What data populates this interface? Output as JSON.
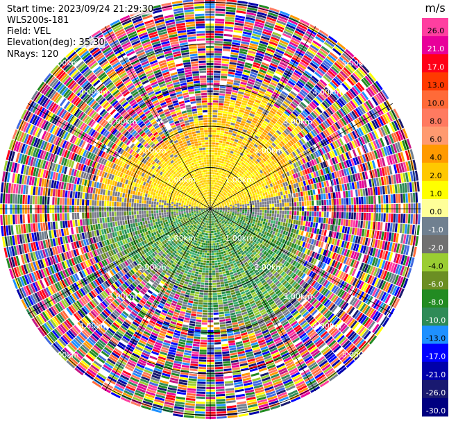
{
  "header": {
    "start_time": "Start time: 2023/09/24 21:29:30",
    "station": "WLS200s-181",
    "field": "Field: VEL",
    "elevation": "Elevation(deg): 35.30",
    "nrays": "NRays: 120"
  },
  "chart_data": {
    "type": "heatmap",
    "projection": "polar-ppi",
    "field": "VEL",
    "nrays": 120,
    "range_rings_km": [
      1.0,
      2.0,
      3.0,
      4.0,
      5.0
    ],
    "ring_labels": [
      "1.00km",
      "2.00km",
      "3.00km",
      "4.00km",
      "5.00km"
    ],
    "max_range_km": 5.1,
    "colorbar": {
      "unit": "m/s",
      "ticks": [
        "26.0",
        "21.0",
        "17.0",
        "13.0",
        "10.0",
        "8.0",
        "6.0",
        "4.0",
        "2.0",
        "1.0",
        "0.0",
        "-1.0",
        "-2.0",
        "-4.0",
        "-6.0",
        "-8.0",
        "-10.0",
        "-13.0",
        "-17.0",
        "-21.0",
        "-26.0",
        "-30.0"
      ],
      "colors": [
        "#ff3fa0",
        "#e8009a",
        "#ff0018",
        "#ff3a00",
        "#ff6a38",
        "#ff7a60",
        "#ff9a70",
        "#ff9a00",
        "#ffc800",
        "#ffff00",
        "#ffff99",
        "#708090",
        "#707070",
        "#9acd32",
        "#6b8e23",
        "#228b22",
        "#2e8b57",
        "#1e90ff",
        "#0000ff",
        "#0000aa",
        "#191970",
        "#000080"
      ]
    },
    "notes": "Velocity PPI: positive (warm) velocities in northern half near centre, negative (green) in southern half; outer ranges noisy."
  }
}
